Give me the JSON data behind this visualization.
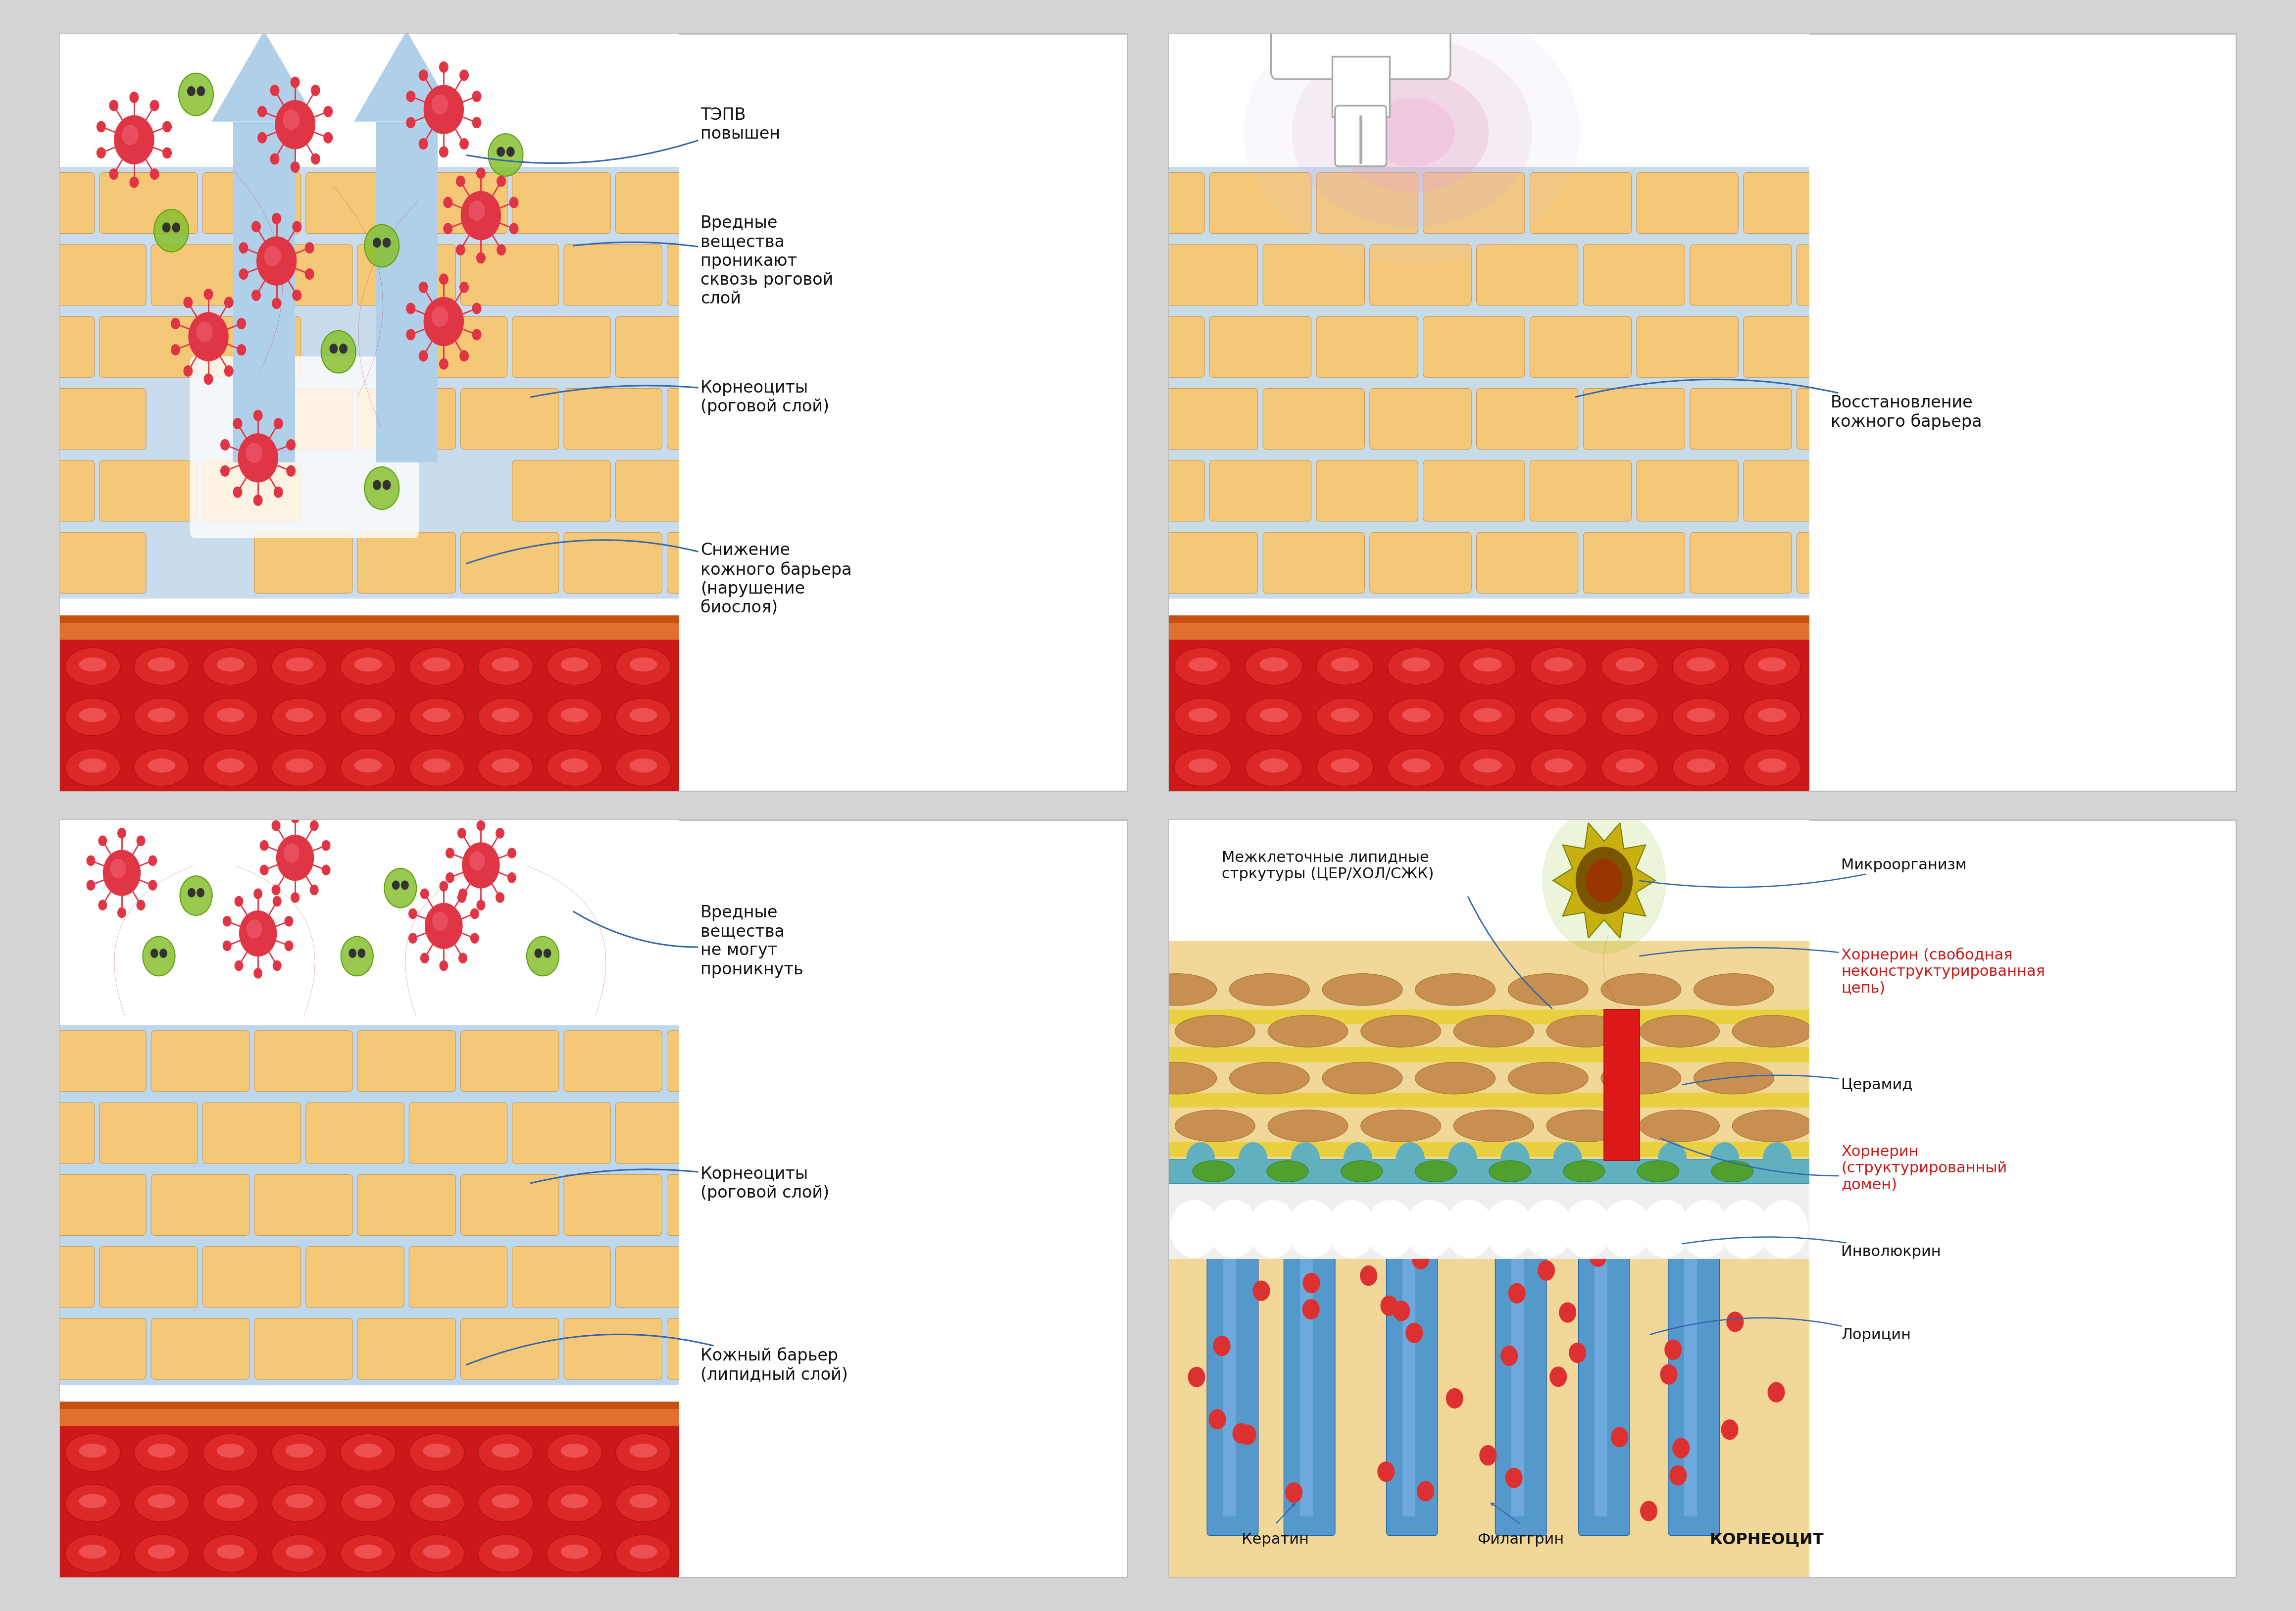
{
  "bg_color": "#d4d4d4",
  "panel_bg": "#ffffff",
  "skin_tan": "#f0c080",
  "skin_gap": "#b8d0e8",
  "arrow_blue_color": "#a8c8e8",
  "arrow_red_color": "#cc2020",
  "text_color": "#222222",
  "text_red": "#cc2020",
  "line_blue": "#4477aa",
  "blood_bg": "#cc2020",
  "blood_cell": "#e03030",
  "blood_highlight": "#f06060",
  "orange_line": "#e07030",
  "orange_line2": "#c85010"
}
